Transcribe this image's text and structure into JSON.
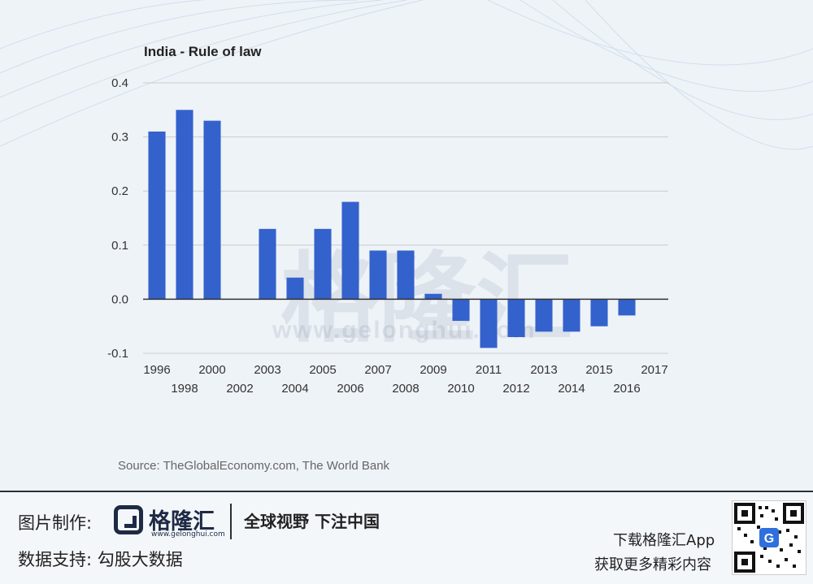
{
  "chart_data": {
    "type": "bar",
    "title": "India - Rule of law",
    "categories": [
      "1996",
      "1998",
      "2000",
      "2002",
      "2003",
      "2004",
      "2005",
      "2006",
      "2007",
      "2008",
      "2009",
      "2010",
      "2011",
      "2012",
      "2013",
      "2014",
      "2015",
      "2016",
      "2017"
    ],
    "values": [
      0.31,
      0.35,
      0.33,
      null,
      0.13,
      0.04,
      0.13,
      0.18,
      0.09,
      0.09,
      0.01,
      -0.04,
      -0.09,
      -0.07,
      -0.06,
      -0.06,
      -0.05,
      -0.03,
      null
    ],
    "yticks": [
      "0.4",
      "0.3",
      "0.2",
      "0.1",
      "0.0",
      "-0.1"
    ],
    "ylim": [
      -0.1,
      0.4
    ],
    "xlabel": "",
    "ylabel": "",
    "grid": true,
    "bar_color": "#3462cc",
    "source": "Source: TheGlobalEconomy.com, The World Bank"
  },
  "watermark": {
    "name": "格隆汇",
    "url": "www.gelonghui.com"
  },
  "footer": {
    "credit_label": "图片制作:",
    "logo_name": "格隆汇",
    "logo_url": "www.gelonghui.com",
    "slogan": "全球视野 下注中国",
    "data_label": "数据支持:  勾股大数据",
    "app_line1": "下载格隆汇App",
    "app_line2": "获取更多精彩内容",
    "qr_icon": "qr-code-icon"
  }
}
